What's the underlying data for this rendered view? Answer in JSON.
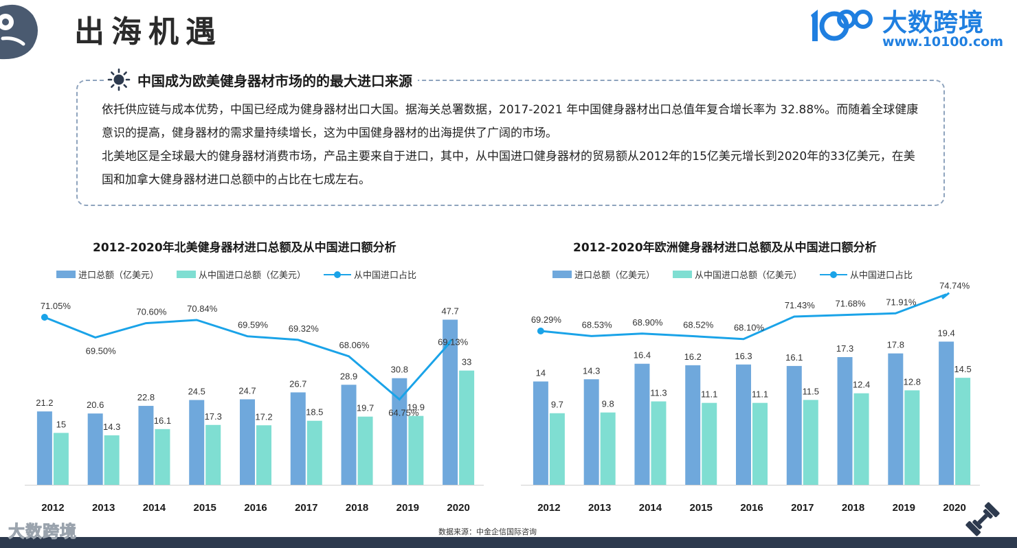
{
  "header": {
    "title": "出海机遇",
    "logo_name": "大数跨境",
    "logo_url": "www.10100.com"
  },
  "info": {
    "heading": "中国成为欧美健身器材市场的的最大进口来源",
    "paragraphs": [
      "依托供应链与成本优势，中国已经成为健身器材出口大国。据海关总署数据，2017-2021 年中国健身器材出口总值年复合增长率为 32.88%。而随着全球健康意识的提高，健身器材的需求量持续增长，这为中国健身器材的出海提供了广阔的市场。",
      "北美地区是全球最大的健身器材消费市场，产品主要来自于进口，其中，从中国进口健身器材的贸易额从2012年的15亿美元增长到2020年的33亿美元，在美国和加拿大健身器材进口总额中的占比在七成左右。"
    ]
  },
  "colors": {
    "total_bar": "#6fa8dc",
    "china_bar": "#7fded2",
    "share_line": "#1aa3e8",
    "dark_bar": "#2d3a4e",
    "accent": "#1f7fe0"
  },
  "chart_data": [
    {
      "type": "bar",
      "title": "2012-2020年北美健身器材进口总额及从中国进口额分析",
      "categories": [
        "2012",
        "2013",
        "2014",
        "2015",
        "2016",
        "2017",
        "2018",
        "2019",
        "2020"
      ],
      "series": [
        {
          "name": "进口总额（亿美元）",
          "type": "bar",
          "values": [
            21.2,
            20.6,
            22.8,
            24.5,
            24.7,
            26.7,
            28.9,
            30.8,
            47.7
          ]
        },
        {
          "name": "从中国进口总额（亿美元）",
          "type": "bar",
          "values": [
            15,
            14.3,
            16.1,
            17.3,
            17.2,
            18.5,
            19.7,
            19.9,
            33
          ]
        },
        {
          "name": "从中国进口占比",
          "type": "line",
          "values": [
            71.05,
            69.5,
            70.6,
            70.84,
            69.59,
            69.32,
            68.06,
            64.75,
            69.13
          ],
          "labels": [
            "71.05%",
            "69.50%",
            "70.60%",
            "70.84%",
            "69.59%",
            "69.32%",
            "68.06%",
            "64.75%",
            "69.13%"
          ]
        }
      ],
      "legend": "top-left",
      "grid": false
    },
    {
      "type": "bar",
      "title": "2012-2020年欧洲健身器材进口总额及从中国进口额分析",
      "categories": [
        "2012",
        "2013",
        "2014",
        "2015",
        "2016",
        "2017",
        "2018",
        "2019",
        "2020"
      ],
      "series": [
        {
          "name": "进口总额（亿美元）",
          "type": "bar",
          "values": [
            14,
            14.3,
            16.4,
            16.2,
            16.3,
            16.1,
            17.3,
            17.8,
            19.4
          ]
        },
        {
          "name": "从中国进口总额（亿美元）",
          "type": "bar",
          "values": [
            9.7,
            9.8,
            11.3,
            11.1,
            11.1,
            11.5,
            12.4,
            12.8,
            14.5
          ]
        },
        {
          "name": "从中国进口占比",
          "type": "line",
          "values": [
            69.29,
            68.53,
            68.9,
            68.52,
            68.1,
            71.43,
            71.68,
            71.91,
            74.74
          ],
          "labels": [
            "69.29%",
            "68.53%",
            "68.90%",
            "68.52%",
            "68.10%",
            "71.43%",
            "71.68%",
            "71.91%",
            "74.74%"
          ]
        }
      ],
      "legend": "top-left",
      "grid": false
    }
  ],
  "footer": {
    "source": "数据来源：中金企信国际咨询",
    "logo_text": "大数跨境"
  }
}
